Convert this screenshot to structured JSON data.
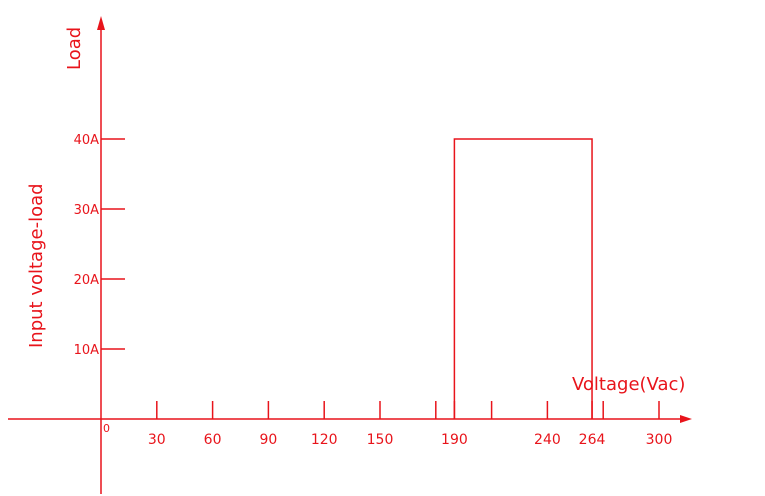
{
  "chart_data": {
    "type": "area",
    "title": "",
    "color": "#e8141b",
    "ylabel_side": "Input voltage-load",
    "ylabel_top": "Load",
    "xlabel": "Voltage(Vac)",
    "origin_label": "0",
    "x_ticks": [
      {
        "value": 30,
        "label": "30"
      },
      {
        "value": 60,
        "label": "60"
      },
      {
        "value": 90,
        "label": "90"
      },
      {
        "value": 120,
        "label": "120"
      },
      {
        "value": 150,
        "label": "150"
      },
      {
        "value": 180,
        "label": ""
      },
      {
        "value": 190,
        "label": "190"
      },
      {
        "value": 210,
        "label": ""
      },
      {
        "value": 240,
        "label": "240"
      },
      {
        "value": 264,
        "label": "264"
      },
      {
        "value": 270,
        "label": ""
      },
      {
        "value": 300,
        "label": "300"
      }
    ],
    "y_ticks": [
      {
        "value": 10,
        "label": "10A"
      },
      {
        "value": 20,
        "label": "20A"
      },
      {
        "value": 30,
        "label": "30A"
      },
      {
        "value": 40,
        "label": "40A"
      }
    ],
    "series": [
      {
        "x": [
          190,
          190,
          264,
          264
        ],
        "y": [
          0,
          40,
          40,
          0
        ]
      }
    ],
    "xlim": [
      0,
      310
    ],
    "ylim": [
      0,
      55
    ]
  }
}
